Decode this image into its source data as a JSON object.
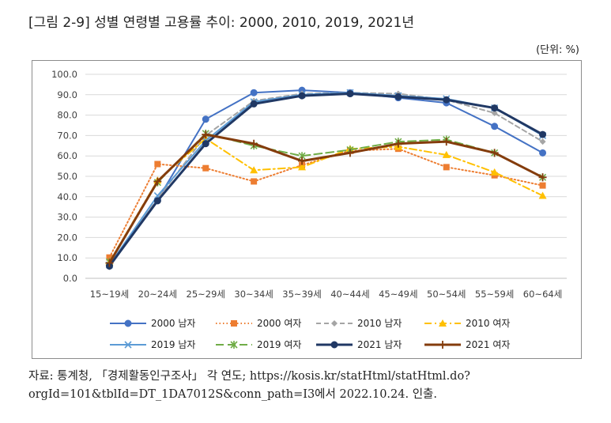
{
  "title": "[그림 2-9] 성별 연령별 고용률 추이: 2000, 2010, 2019, 2021년",
  "unit": "(단위: %)",
  "source": "자료: 통계청, 「경제활동인구조사」 각 연도; https://kosis.kr/statHtml/statHtml.do?orgId=101&tblId=DT_1DA7012S&conn_path=I3에서 2022.10.24. 인출.",
  "chart_data": {
    "type": "line",
    "title": "",
    "xlabel": "",
    "ylabel": "",
    "ylim": [
      0,
      100
    ],
    "yticks": [
      "0.0",
      "10.0",
      "20.0",
      "30.0",
      "40.0",
      "50.0",
      "60.0",
      "70.0",
      "80.0",
      "90.0",
      "100.0"
    ],
    "grid": true,
    "legend_position": "bottom",
    "categories": [
      "15~19세",
      "20~24세",
      "25~29세",
      "30~34세",
      "35~39세",
      "40~44세",
      "45~49세",
      "50~54세",
      "55~59세",
      "60~64세"
    ],
    "series": [
      {
        "name": "2000 남자",
        "color": "#4472c4",
        "dash": "solid",
        "marker": "circle",
        "values": [
          6.2,
          38.5,
          78.0,
          91.0,
          92.2,
          91.0,
          88.5,
          86.0,
          74.5,
          61.5
        ]
      },
      {
        "name": "2000 여자",
        "color": "#ed7d31",
        "dash": "dot",
        "marker": "square",
        "values": [
          10.2,
          56.0,
          54.0,
          47.5,
          55.5,
          62.5,
          63.5,
          54.5,
          50.5,
          45.5
        ]
      },
      {
        "name": "2010 남자",
        "color": "#a5a5a5",
        "dash": "dash",
        "marker": "diamond",
        "values": [
          5.5,
          39.0,
          70.0,
          87.0,
          90.5,
          91.0,
          90.5,
          87.5,
          81.0,
          67.0
        ]
      },
      {
        "name": "2010 여자",
        "color": "#ffc000",
        "dash": "dashdot",
        "marker": "triangle",
        "values": [
          8.0,
          48.0,
          68.5,
          53.0,
          54.5,
          63.5,
          64.5,
          60.5,
          52.0,
          40.5
        ]
      },
      {
        "name": "2019 남자",
        "color": "#5b9bd5",
        "dash": "solid",
        "marker": "x",
        "values": [
          6.5,
          40.5,
          67.5,
          86.5,
          90.0,
          91.0,
          89.5,
          88.0,
          83.5,
          70.0
        ]
      },
      {
        "name": "2019 여자",
        "color": "#70ad47",
        "dash": "longdash",
        "marker": "star",
        "values": [
          8.0,
          47.0,
          71.0,
          65.0,
          60.0,
          63.0,
          67.0,
          68.0,
          61.5,
          49.5
        ]
      },
      {
        "name": "2021 남자",
        "color": "#203864",
        "dash": "solid",
        "marker": "circle",
        "values": [
          6.0,
          38.0,
          66.0,
          85.5,
          89.5,
          90.5,
          89.0,
          87.5,
          83.5,
          70.5
        ]
      },
      {
        "name": "2021 여자",
        "color": "#843c0c",
        "dash": "solid",
        "marker": "plus",
        "values": [
          7.5,
          47.5,
          70.5,
          66.0,
          57.5,
          61.5,
          66.0,
          67.0,
          61.5,
          49.5
        ]
      }
    ]
  }
}
